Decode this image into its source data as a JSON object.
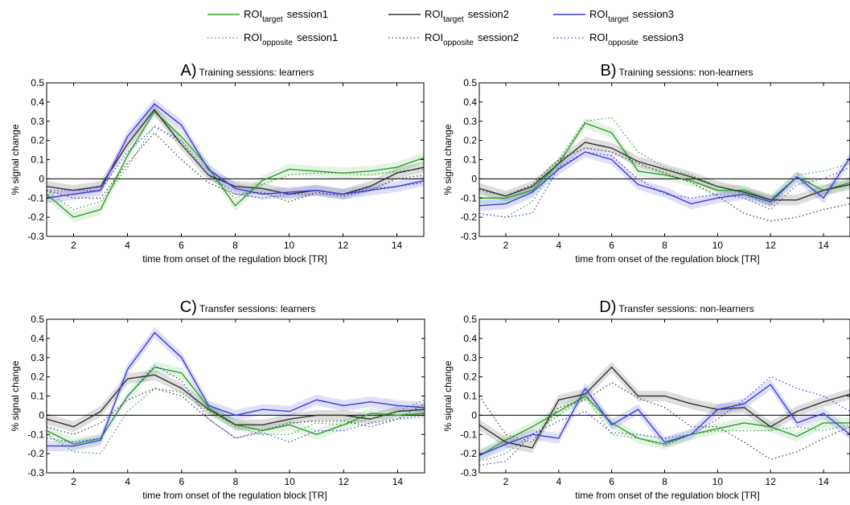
{
  "legend": [
    {
      "base": "ROI",
      "sub": "target",
      "session": "session1",
      "color": "#2ca02c",
      "dash": "solid"
    },
    {
      "base": "ROI",
      "sub": "target",
      "session": "session2",
      "color": "#333333",
      "dash": "solid"
    },
    {
      "base": "ROI",
      "sub": "target",
      "session": "session3",
      "color": "#3b3bdc",
      "dash": "solid"
    },
    {
      "base": "ROI",
      "sub": "opposite",
      "session": "session1",
      "color": "#2ca02c",
      "dash": "dotted"
    },
    {
      "base": "ROI",
      "sub": "opposite",
      "session": "session2",
      "color": "#333333",
      "dash": "dotted"
    },
    {
      "base": "ROI",
      "sub": "opposite",
      "session": "session3",
      "color": "#3b3bdc",
      "dash": "dotted"
    }
  ],
  "chart_data": [
    {
      "type": "line",
      "panel_letter": "A)",
      "title": "Training sessions: learners",
      "xlabel": "time from onset of the regulation block [TR]",
      "ylabel": "% signal change",
      "xlim": [
        1,
        15
      ],
      "ylim": [
        -0.3,
        0.5
      ],
      "xticks": [
        2,
        4,
        6,
        8,
        10,
        12,
        14
      ],
      "yticks": [
        -0.3,
        -0.2,
        -0.1,
        0,
        0.1,
        0.2,
        0.3,
        0.4,
        0.5
      ],
      "x": [
        1,
        2,
        3,
        4,
        5,
        6,
        7,
        8,
        9,
        10,
        11,
        12,
        13,
        14,
        15
      ],
      "series": [
        {
          "name": "ROItarget session1",
          "values": [
            -0.08,
            -0.2,
            -0.16,
            0.12,
            0.35,
            0.22,
            0.06,
            -0.14,
            -0.01,
            0.05,
            0.04,
            0.03,
            0.04,
            0.06,
            0.11
          ]
        },
        {
          "name": "ROItarget session2",
          "values": [
            -0.04,
            -0.06,
            -0.04,
            0.18,
            0.36,
            0.18,
            0.02,
            -0.04,
            -0.05,
            -0.08,
            -0.06,
            -0.08,
            -0.04,
            0.03,
            0.06
          ]
        },
        {
          "name": "ROItarget session3",
          "values": [
            -0.1,
            -0.08,
            -0.06,
            0.22,
            0.39,
            0.28,
            0.05,
            -0.05,
            -0.08,
            -0.07,
            -0.06,
            -0.08,
            -0.06,
            -0.04,
            -0.01
          ]
        },
        {
          "name": "ROIopposite session1",
          "values": [
            -0.06,
            -0.16,
            -0.12,
            0.06,
            0.28,
            0.18,
            0.02,
            -0.1,
            -0.03,
            0.02,
            0.03,
            0.03,
            0.02,
            0.04,
            0.05
          ]
        },
        {
          "name": "ROIopposite session2",
          "values": [
            -0.06,
            -0.1,
            -0.1,
            0.08,
            0.24,
            0.1,
            -0.02,
            -0.08,
            -0.07,
            -0.12,
            -0.07,
            -0.09,
            -0.06,
            0,
            0.02
          ]
        },
        {
          "name": "ROIopposite session3",
          "values": [
            -0.06,
            -0.06,
            -0.06,
            0.14,
            0.27,
            0.2,
            0.02,
            -0.08,
            -0.1,
            -0.08,
            -0.08,
            -0.08,
            -0.05,
            -0.04,
            -0.02
          ]
        }
      ]
    },
    {
      "type": "line",
      "panel_letter": "B)",
      "title": "Training sessions: non-learners",
      "xlabel": "time from onset of the regulation block [TR]",
      "ylabel": "% signal change",
      "xlim": [
        1,
        15
      ],
      "ylim": [
        -0.3,
        0.5
      ],
      "xticks": [
        2,
        4,
        6,
        8,
        10,
        12,
        14
      ],
      "yticks": [
        -0.3,
        -0.2,
        -0.1,
        0,
        0.1,
        0.2,
        0.3,
        0.4,
        0.5
      ],
      "x": [
        1,
        2,
        3,
        4,
        5,
        6,
        7,
        8,
        9,
        10,
        11,
        12,
        13,
        14,
        15
      ],
      "series": [
        {
          "name": "ROItarget session1",
          "values": [
            -0.1,
            -0.1,
            -0.06,
            0.08,
            0.29,
            0.24,
            0.04,
            0.02,
            -0.01,
            -0.06,
            -0.06,
            -0.11,
            0.01,
            -0.06,
            -0.02
          ]
        },
        {
          "name": "ROItarget session2",
          "values": [
            -0.05,
            -0.09,
            -0.04,
            0.08,
            0.19,
            0.16,
            0.09,
            0.05,
            0.01,
            -0.04,
            -0.07,
            -0.11,
            -0.11,
            -0.06,
            -0.03
          ]
        },
        {
          "name": "ROItarget session3",
          "values": [
            -0.14,
            -0.13,
            -0.07,
            0.05,
            0.14,
            0.1,
            -0.03,
            -0.07,
            -0.13,
            -0.1,
            -0.08,
            -0.12,
            0.01,
            -0.1,
            0.11
          ]
        },
        {
          "name": "ROIopposite session1",
          "values": [
            -0.18,
            -0.2,
            -0.12,
            0.1,
            0.3,
            0.32,
            0.14,
            0.06,
            0.02,
            -0.04,
            -0.08,
            -0.14,
            0.02,
            0.04,
            0.08
          ]
        },
        {
          "name": "ROIopposite session2",
          "values": [
            -0.06,
            -0.09,
            -0.03,
            0.1,
            0.16,
            0.14,
            0.08,
            0.03,
            -0.02,
            -0.09,
            -0.18,
            -0.22,
            -0.2,
            -0.16,
            -0.13
          ]
        },
        {
          "name": "ROIopposite session3",
          "values": [
            -0.18,
            -0.2,
            -0.18,
            0.06,
            0.14,
            0.12,
            0,
            -0.08,
            -0.1,
            -0.08,
            -0.1,
            -0.16,
            -0.03,
            0,
            0.06
          ]
        }
      ]
    },
    {
      "type": "line",
      "panel_letter": "C)",
      "title": "Transfer sessions: learners",
      "xlabel": "time from onset of the regulation block [TR]",
      "ylabel": "% signal change",
      "xlim": [
        1,
        15
      ],
      "ylim": [
        -0.3,
        0.5
      ],
      "xticks": [
        2,
        4,
        6,
        8,
        10,
        12,
        14
      ],
      "yticks": [
        -0.3,
        -0.2,
        -0.1,
        0,
        0.1,
        0.2,
        0.3,
        0.4,
        0.5
      ],
      "x": [
        1,
        2,
        3,
        4,
        5,
        6,
        7,
        8,
        9,
        10,
        11,
        12,
        13,
        14,
        15
      ],
      "series": [
        {
          "name": "ROItarget session1",
          "values": [
            -0.08,
            -0.15,
            -0.12,
            0.1,
            0.25,
            0.22,
            0.04,
            -0.05,
            -0.08,
            -0.05,
            -0.1,
            -0.05,
            0.01,
            0,
            0.01
          ]
        },
        {
          "name": "ROItarget session2",
          "values": [
            -0.02,
            -0.06,
            0.02,
            0.19,
            0.21,
            0.14,
            0.03,
            -0.05,
            -0.05,
            -0.02,
            0,
            0,
            -0.02,
            0.02,
            0.03
          ]
        },
        {
          "name": "ROItarget session3",
          "values": [
            -0.16,
            -0.16,
            -0.13,
            0.24,
            0.43,
            0.3,
            0.05,
            0,
            0.03,
            0.02,
            0.08,
            0.05,
            0.07,
            0.05,
            0.04
          ]
        },
        {
          "name": "ROIopposite session1",
          "values": [
            -0.1,
            -0.19,
            -0.2,
            0.02,
            0.14,
            0.12,
            0.02,
            -0.06,
            -0.1,
            -0.1,
            -0.04,
            -0.05,
            -0.02,
            0.02,
            0.08
          ]
        },
        {
          "name": "ROIopposite session2",
          "values": [
            -0.06,
            -0.1,
            -0.04,
            0.08,
            0.14,
            0.1,
            -0.02,
            -0.12,
            -0.08,
            -0.04,
            -0.03,
            -0.03,
            -0.06,
            -0.02,
            0.06
          ]
        },
        {
          "name": "ROIopposite session3",
          "values": [
            -0.12,
            -0.14,
            -0.12,
            0.1,
            0.26,
            0.18,
            -0.02,
            -0.12,
            -0.09,
            -0.14,
            -0.08,
            -0.08,
            -0.04,
            -0.02,
            0
          ]
        }
      ]
    },
    {
      "type": "line",
      "panel_letter": "D)",
      "title": "Transfer sessions: non-learners",
      "xlabel": "time from onset of the regulation block [TR]",
      "ylabel": "% signal change",
      "xlim": [
        1,
        15
      ],
      "ylim": [
        -0.3,
        0.5
      ],
      "xticks": [
        2,
        4,
        6,
        8,
        10,
        12,
        14
      ],
      "yticks": [
        -0.3,
        -0.2,
        -0.1,
        0,
        0.1,
        0.2,
        0.3,
        0.4,
        0.5
      ],
      "x": [
        1,
        2,
        3,
        4,
        5,
        6,
        7,
        8,
        9,
        10,
        11,
        12,
        13,
        14,
        15
      ],
      "series": [
        {
          "name": "ROItarget session1",
          "values": [
            -0.21,
            -0.13,
            -0.06,
            0.02,
            0.1,
            -0.04,
            -0.12,
            -0.15,
            -0.1,
            -0.07,
            -0.04,
            -0.06,
            -0.11,
            -0.04,
            -0.04
          ]
        },
        {
          "name": "ROItarget session2",
          "values": [
            -0.05,
            -0.14,
            -0.17,
            0.08,
            0.11,
            0.25,
            0.1,
            0.1,
            0.06,
            0.03,
            0.04,
            -0.06,
            0.02,
            0.07,
            0.11
          ]
        },
        {
          "name": "ROItarget session3",
          "values": [
            -0.21,
            -0.15,
            -0.1,
            -0.12,
            0.14,
            -0.05,
            0.03,
            -0.14,
            -0.1,
            0.03,
            0.06,
            0.16,
            -0.04,
            0.01,
            -0.1
          ]
        },
        {
          "name": "ROIopposite session1",
          "values": [
            -0.24,
            -0.2,
            -0.1,
            0,
            0.1,
            -0.1,
            -0.12,
            -0.16,
            -0.1,
            -0.08,
            -0.08,
            -0.08,
            -0.06,
            -0.08,
            -0.05
          ]
        },
        {
          "name": "ROIopposite session2",
          "values": [
            0.1,
            -0.1,
            -0.14,
            0.04,
            0.08,
            0.17,
            0.09,
            0.04,
            -0.06,
            -0.06,
            -0.14,
            -0.23,
            -0.19,
            -0.12,
            -0.06
          ]
        },
        {
          "name": "ROIopposite session3",
          "values": [
            -0.26,
            -0.24,
            -0.1,
            -0.03,
            0.02,
            -0.09,
            -0.1,
            -0.12,
            -0.1,
            -0.02,
            0.08,
            0.2,
            0.14,
            0.1,
            0.02
          ]
        }
      ]
    }
  ]
}
